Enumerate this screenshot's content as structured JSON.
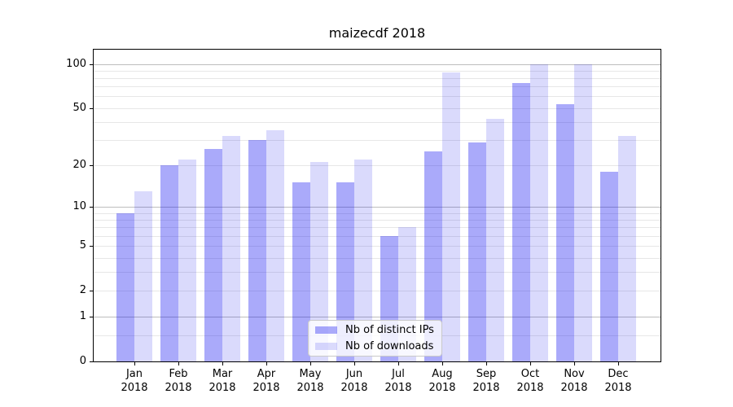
{
  "title": "maizecdf 2018",
  "chart_data": {
    "type": "bar",
    "title": "maizecdf 2018",
    "categories": [
      "Jan",
      "Feb",
      "Mar",
      "Apr",
      "May",
      "Jun",
      "Jul",
      "Aug",
      "Sep",
      "Oct",
      "Nov",
      "Dec"
    ],
    "year_label": "2018",
    "series": [
      {
        "name": "Nb of distinct IPs",
        "color": "rgba(5,5,240,0.34)",
        "values": [
          9,
          20,
          26,
          30,
          15,
          15,
          6,
          25,
          29,
          74,
          53,
          18
        ]
      },
      {
        "name": "Nb of downloads",
        "color": "rgba(5,5,235,0.15)",
        "values": [
          13,
          22,
          32,
          35,
          21,
          22,
          7,
          88,
          42,
          99,
          100,
          32
        ]
      }
    ],
    "xlabel": "",
    "ylabel": "",
    "yscale": "log(1+value)",
    "ylim": [
      0,
      125
    ],
    "ytick_values": [
      0,
      1,
      2,
      5,
      10,
      20,
      50,
      100
    ],
    "grid_major_values": [
      1,
      10,
      100
    ],
    "grid_minor_values": [
      0.5,
      2,
      3,
      4,
      5,
      6,
      7,
      8,
      9,
      20,
      30,
      40,
      50,
      60,
      70,
      80,
      90
    ],
    "legend_position": "lower-center"
  },
  "colors": {
    "ips_bar": "rgba(5,5,240,0.34)",
    "downloads_bar": "rgba(5,5,235,0.15)",
    "grid_major": "#bdbdbd",
    "grid_minor": "#e7e7e7",
    "axis_line": "#000000",
    "text": "#000000",
    "legend_border": "#c9c9c9",
    "legend_background": "rgba(255,255,255,0.8)"
  }
}
